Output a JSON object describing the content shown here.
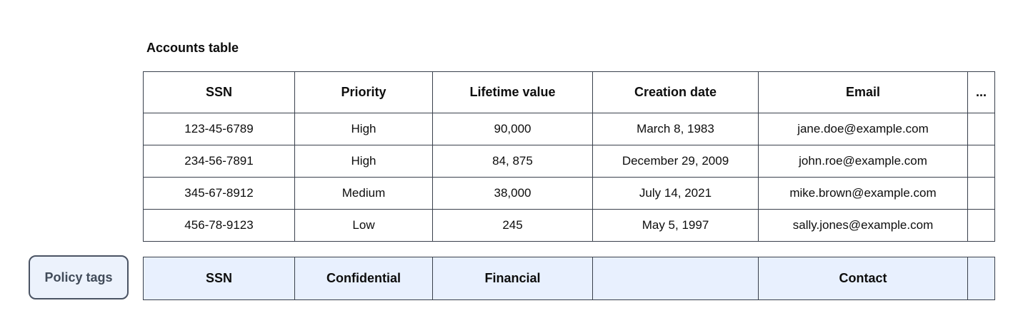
{
  "title": "Accounts table",
  "accounts_table": {
    "headers": [
      "SSN",
      "Priority",
      "Lifetime value",
      "Creation date",
      "Email",
      "..."
    ],
    "rows": [
      [
        "123-45-6789",
        "High",
        "90,000",
        "March 8, 1983",
        "jane.doe@example.com",
        ""
      ],
      [
        "234-56-7891",
        "High",
        "84, 875",
        "December 29, 2009",
        "john.roe@example.com",
        ""
      ],
      [
        "345-67-8912",
        "Medium",
        "38,000",
        "July 14, 2021",
        "mike.brown@example.com",
        ""
      ],
      [
        "456-78-9123",
        "Low",
        "245",
        "May 5, 1997",
        "sally.jones@example.com",
        ""
      ]
    ]
  },
  "policy": {
    "button_label": "Policy tags",
    "tags": [
      "SSN",
      "Confidential",
      "Financial",
      "",
      "Contact",
      ""
    ]
  },
  "colors": {
    "table_border": "#39404c",
    "policy_row_background": "#e8f0fe",
    "chip_background": "#ecf2fc",
    "chip_border": "#4a5363",
    "chip_text": "#414b59",
    "text": "#0d0d0d"
  }
}
